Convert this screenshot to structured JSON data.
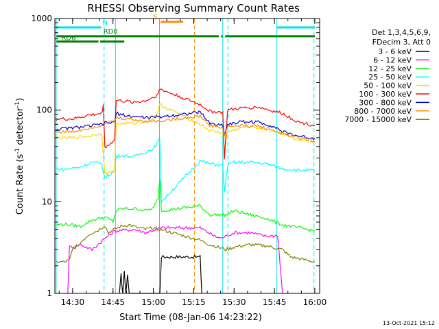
{
  "chart_data": {
    "type": "line",
    "title": "RHESSI Observing Summary Count Rates",
    "xlabel": "Start Time (08-Jan-06 14:23:22)",
    "ylabel_parts": [
      "Count Rate (s",
      "-1",
      " detector",
      "-1",
      ")"
    ],
    "timestamp": "13-Oct-2021 15:12",
    "xlim": [
      14.39,
      16.03
    ],
    "ylim": [
      1,
      1000
    ],
    "y_scale": "log",
    "x_ticks": [
      {
        "t": 14.5,
        "label": "14:30"
      },
      {
        "t": 14.75,
        "label": "14:45"
      },
      {
        "t": 15.0,
        "label": "15:00"
      },
      {
        "t": 15.25,
        "label": "15:15"
      },
      {
        "t": 15.5,
        "label": "15:30"
      },
      {
        "t": 15.75,
        "label": "15:45"
      },
      {
        "t": 16.0,
        "label": "16:00"
      }
    ],
    "y_ticks": [
      {
        "v": 1,
        "label": "1"
      },
      {
        "v": 10,
        "label": "10"
      },
      {
        "v": 100,
        "label": "100"
      },
      {
        "v": 1000,
        "label": "1000"
      }
    ],
    "legend_header": [
      "Det 1,3,4,5,6,9,",
      "FDecim 3, Att 0"
    ],
    "series": [
      {
        "name": "3 - 6 keV",
        "color": "#000000",
        "points": [
          [
            14.79,
            1.0
          ],
          [
            14.8,
            1.6
          ],
          [
            14.81,
            1.0
          ],
          [
            14.82,
            1.7
          ],
          [
            14.83,
            1.0
          ],
          [
            14.84,
            1.6
          ],
          [
            14.85,
            1.0
          ],
          [
            15.04,
            1.0
          ],
          [
            15.05,
            2.5
          ],
          [
            15.29,
            2.5
          ],
          [
            15.3,
            1.0
          ]
        ]
      },
      {
        "name": "6 - 12 keV",
        "color": "#ff00ff",
        "points": [
          [
            14.47,
            1.0
          ],
          [
            14.48,
            3.2
          ],
          [
            14.55,
            3.4
          ],
          [
            14.62,
            3.0
          ],
          [
            14.7,
            4.0
          ],
          [
            14.76,
            4.8
          ],
          [
            14.88,
            5.0
          ],
          [
            14.95,
            4.6
          ],
          [
            15.05,
            5.2
          ],
          [
            15.29,
            5.2
          ],
          [
            15.38,
            4.2
          ],
          [
            15.42,
            4.0
          ],
          [
            15.5,
            4.6
          ],
          [
            15.6,
            4.6
          ],
          [
            15.7,
            4.2
          ],
          [
            15.77,
            4.3
          ],
          [
            15.8,
            1.0
          ]
        ]
      },
      {
        "name": "12 - 25 keV",
        "color": "#00ff00",
        "points": [
          [
            14.4,
            5.6
          ],
          [
            14.45,
            5.7
          ],
          [
            14.55,
            5.4
          ],
          [
            14.62,
            6.3
          ],
          [
            14.7,
            6.8
          ],
          [
            14.75,
            6.1
          ],
          [
            14.77,
            8.0
          ],
          [
            14.8,
            8.4
          ],
          [
            14.9,
            8.4
          ],
          [
            14.95,
            8.0
          ],
          [
            15.0,
            8.5
          ],
          [
            15.03,
            11.0
          ],
          [
            15.04,
            18.0
          ],
          [
            15.05,
            8.0
          ],
          [
            15.29,
            9.0
          ],
          [
            15.35,
            7.2
          ],
          [
            15.45,
            7.2
          ],
          [
            15.5,
            8.0
          ],
          [
            15.6,
            7.2
          ],
          [
            15.7,
            6.6
          ],
          [
            15.8,
            5.6
          ],
          [
            15.9,
            5.2
          ],
          [
            16.0,
            4.8
          ]
        ]
      },
      {
        "name": "25 - 50 keV",
        "color": "#00ffff",
        "points": [
          [
            14.4,
            23.0
          ],
          [
            14.45,
            22.5
          ],
          [
            14.55,
            24.0
          ],
          [
            14.62,
            27.0
          ],
          [
            14.68,
            26.0
          ],
          [
            14.7,
            18.0
          ],
          [
            14.73,
            20.0
          ],
          [
            14.76,
            22.0
          ],
          [
            14.77,
            31.0
          ],
          [
            14.8,
            32.0
          ],
          [
            14.88,
            31.0
          ],
          [
            14.95,
            35.0
          ],
          [
            15.0,
            38.0
          ],
          [
            15.03,
            45.0
          ],
          [
            15.04,
            50.0
          ],
          [
            15.05,
            10.0
          ],
          [
            15.29,
            28.0
          ],
          [
            15.35,
            26.0
          ],
          [
            15.43,
            25.0
          ],
          [
            15.44,
            13.0
          ],
          [
            15.46,
            25.0
          ],
          [
            15.5,
            27.0
          ],
          [
            15.6,
            27.0
          ],
          [
            15.7,
            26.0
          ],
          [
            15.8,
            23.0
          ],
          [
            15.9,
            22.0
          ],
          [
            16.0,
            22.0
          ]
        ]
      },
      {
        "name": "50 - 100 keV",
        "color": "#ffd700",
        "points": [
          [
            14.4,
            50.0
          ],
          [
            14.5,
            50.0
          ],
          [
            14.6,
            52.0
          ],
          [
            14.68,
            56.0
          ],
          [
            14.7,
            20.0
          ],
          [
            14.76,
            22.0
          ],
          [
            14.77,
            71.0
          ],
          [
            14.88,
            72.0
          ],
          [
            14.95,
            76.0
          ],
          [
            15.0,
            80.0
          ],
          [
            15.03,
            100.0
          ],
          [
            15.04,
            115.0
          ],
          [
            15.29,
            70.0
          ],
          [
            15.35,
            60.0
          ],
          [
            15.43,
            56.0
          ],
          [
            15.44,
            37.0
          ],
          [
            15.46,
            58.0
          ],
          [
            15.55,
            64.0
          ],
          [
            15.6,
            66.0
          ],
          [
            15.7,
            62.0
          ],
          [
            15.8,
            56.0
          ],
          [
            15.9,
            46.0
          ],
          [
            16.0,
            44.0
          ]
        ]
      },
      {
        "name": "100 - 300 keV",
        "color": "#ff0000",
        "points": [
          [
            14.4,
            80.0
          ],
          [
            14.5,
            80.0
          ],
          [
            14.6,
            88.0
          ],
          [
            14.68,
            92.0
          ],
          [
            14.69,
            112.0
          ],
          [
            14.7,
            40.0
          ],
          [
            14.73,
            42.0
          ],
          [
            14.76,
            48.0
          ],
          [
            14.77,
            128.0
          ],
          [
            14.88,
            122.0
          ],
          [
            14.95,
            126.0
          ],
          [
            15.0,
            138.0
          ],
          [
            15.03,
            150.0
          ],
          [
            15.04,
            170.0
          ],
          [
            15.29,
            115.0
          ],
          [
            15.35,
            97.0
          ],
          [
            15.43,
            95.0
          ],
          [
            15.44,
            30.0
          ],
          [
            15.46,
            100.0
          ],
          [
            15.55,
            105.0
          ],
          [
            15.65,
            108.0
          ],
          [
            15.72,
            100.0
          ],
          [
            15.8,
            92.0
          ],
          [
            15.9,
            74.0
          ],
          [
            16.0,
            68.0
          ]
        ]
      },
      {
        "name": "300 - 800 keV",
        "color": "#0000cd",
        "points": [
          [
            14.4,
            62.0
          ],
          [
            14.5,
            64.0
          ],
          [
            14.6,
            67.0
          ],
          [
            14.68,
            70.0
          ],
          [
            14.7,
            72.0
          ],
          [
            14.76,
            74.0
          ],
          [
            14.77,
            92.0
          ],
          [
            14.85,
            86.0
          ],
          [
            14.95,
            83.0
          ],
          [
            15.03,
            84.0
          ],
          [
            15.29,
            95.0
          ],
          [
            15.35,
            72.0
          ],
          [
            15.43,
            68.0
          ],
          [
            15.44,
            55.0
          ],
          [
            15.46,
            70.0
          ],
          [
            15.55,
            75.0
          ],
          [
            15.65,
            74.0
          ],
          [
            15.75,
            66.0
          ],
          [
            15.8,
            58.0
          ],
          [
            15.9,
            52.0
          ],
          [
            16.0,
            49.0
          ]
        ]
      },
      {
        "name": "800 - 7000 keV",
        "color": "#ff8c00",
        "points": [
          [
            14.4,
            58.0
          ],
          [
            14.5,
            58.0
          ],
          [
            14.6,
            64.0
          ],
          [
            14.68,
            68.0
          ],
          [
            14.7,
            72.0
          ],
          [
            14.76,
            75.0
          ],
          [
            14.77,
            82.0
          ],
          [
            14.85,
            80.0
          ],
          [
            14.95,
            76.0
          ],
          [
            15.03,
            76.0
          ],
          [
            15.29,
            86.0
          ],
          [
            15.35,
            68.0
          ],
          [
            15.43,
            64.0
          ],
          [
            15.44,
            52.0
          ],
          [
            15.46,
            66.0
          ],
          [
            15.55,
            68.0
          ],
          [
            15.65,
            67.0
          ],
          [
            15.75,
            60.0
          ],
          [
            15.8,
            55.0
          ],
          [
            15.9,
            50.0
          ],
          [
            16.0,
            46.0
          ]
        ]
      },
      {
        "name": "7000 - 15000 keV",
        "color": "#808000",
        "points": [
          [
            14.4,
            2.2
          ],
          [
            14.45,
            2.2
          ],
          [
            14.48,
            2.3
          ],
          [
            14.5,
            3.0
          ],
          [
            14.55,
            3.6
          ],
          [
            14.6,
            4.4
          ],
          [
            14.65,
            4.8
          ],
          [
            14.7,
            5.5
          ],
          [
            14.72,
            4.6
          ],
          [
            14.76,
            5.0
          ],
          [
            14.8,
            5.4
          ],
          [
            14.85,
            5.6
          ],
          [
            14.9,
            5.2
          ],
          [
            14.95,
            5.0
          ],
          [
            15.0,
            5.2
          ],
          [
            15.04,
            5.0
          ],
          [
            15.29,
            3.8
          ],
          [
            15.35,
            3.4
          ],
          [
            15.45,
            3.0
          ],
          [
            15.5,
            3.2
          ],
          [
            15.6,
            3.4
          ],
          [
            15.7,
            3.3
          ],
          [
            15.8,
            3.0
          ],
          [
            15.85,
            2.5
          ],
          [
            15.9,
            2.4
          ],
          [
            16.0,
            2.2
          ]
        ]
      }
    ],
    "vlines": [
      {
        "t": 14.398,
        "color": "#00e5e5",
        "style": "solid"
      },
      {
        "t": 14.695,
        "color": "#00e5e5",
        "style": "dashed"
      },
      {
        "t": 14.765,
        "color": "#00e5e5",
        "style": "solid"
      },
      {
        "t": 15.038,
        "color": "#ff8c00",
        "style": "solid"
      },
      {
        "t": 15.255,
        "color": "#ff8c00",
        "style": "dashed"
      },
      {
        "t": 15.43,
        "color": "#00e5e5",
        "style": "solid"
      },
      {
        "t": 15.462,
        "color": "#00e5e5",
        "style": "dashed"
      },
      {
        "t": 15.765,
        "color": "#00e5e5",
        "style": "solid"
      },
      {
        "t": 15.995,
        "color": "#00e5e5",
        "style": "dashed"
      }
    ],
    "flags": [
      {
        "label": "N",
        "color": "#00e5e5",
        "label_t": 14.7,
        "label_v": 820,
        "segments": [
          [
            14.4,
            14.678
          ],
          [
            15.765,
            16.0
          ]
        ],
        "bar_v": 800
      },
      {
        "label": "S",
        "color": "#ff8c00",
        "label_t": 15.01,
        "label_v": 950,
        "segments": [
          [
            15.045,
            15.185
          ]
        ],
        "bar_v": 920
      },
      {
        "label": "RD0",
        "color": "#008000",
        "label_t": 14.735,
        "label_v": 660,
        "segments": [
          [
            14.4,
            15.405
          ],
          [
            15.42,
            15.43
          ],
          [
            15.445,
            16.0
          ]
        ],
        "bar_v": 640
      },
      {
        "label": "RD6",
        "color": "#008000",
        "label_t": 14.475,
        "label_v": 560,
        "segments": [
          [
            14.4,
            14.66
          ],
          [
            14.67,
            14.82
          ]
        ],
        "bar_v": 560
      }
    ]
  }
}
